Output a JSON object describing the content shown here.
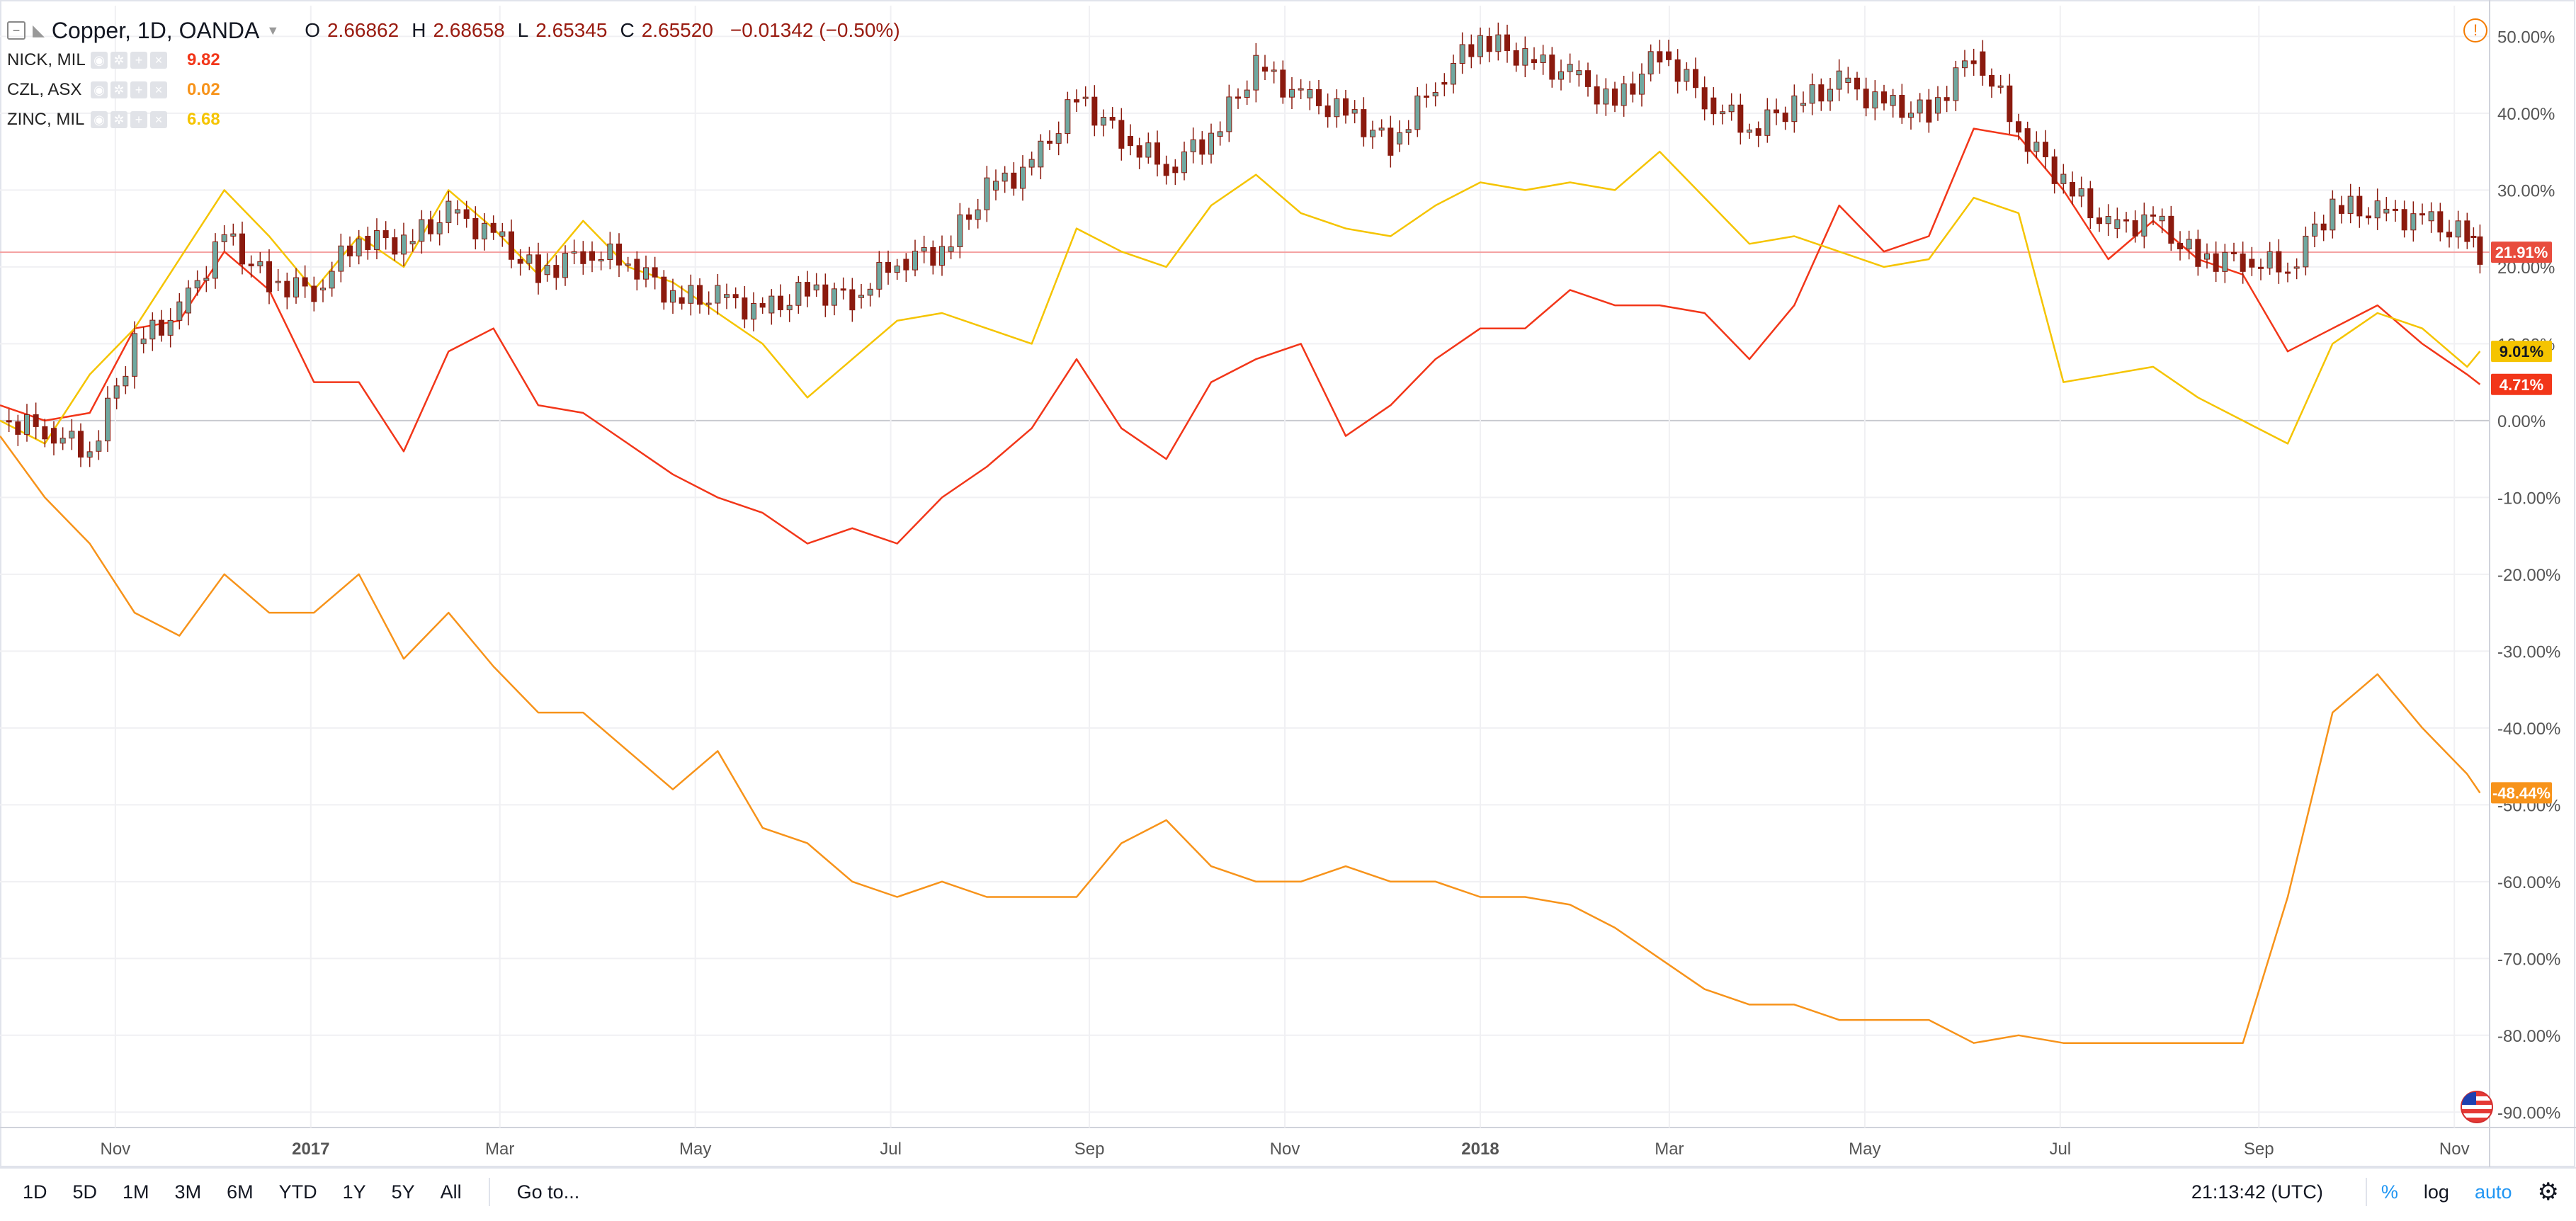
{
  "header": {
    "title": "Copper, 1D, OANDA",
    "ohlc": {
      "o_label": "O",
      "o": "2.66862",
      "h_label": "H",
      "h": "2.68658",
      "l_label": "L",
      "l": "2.65345",
      "c_label": "C",
      "c": "2.65520",
      "change": "−0.01342 (−0.50%)"
    }
  },
  "compare": [
    {
      "name": "NICK, MIL",
      "value": "9.82",
      "color": "#f23619"
    },
    {
      "name": "CZL, ASX",
      "value": "0.02",
      "color": "#f7931a"
    },
    {
      "name": "ZINC, MIL",
      "value": "6.68",
      "color": "#f5c400"
    }
  ],
  "toolbar": {
    "ranges": [
      "1D",
      "5D",
      "1M",
      "3M",
      "6M",
      "YTD",
      "1Y",
      "5Y",
      "All"
    ],
    "goto": "Go to...",
    "time": "21:13:42 (UTC)",
    "percent": "%",
    "log": "log",
    "auto": "auto"
  },
  "colors": {
    "candle_up": "#6fa8a0",
    "candle_down": "#8b1a0e",
    "nick": "#f23619",
    "czl": "#f7931a",
    "zinc": "#f5c400",
    "grid": "#f0f0f3"
  },
  "chart_data": {
    "type": "line",
    "y_unit": "%",
    "ylim": [
      -92,
      54
    ],
    "y_ticks": [
      "50.00%",
      "40.00%",
      "30.00%",
      "20.00%",
      "10.00%",
      "0.00%",
      "-10.00%",
      "-20.00%",
      "-30.00%",
      "-40.00%",
      "-50.00%",
      "-60.00%",
      "-70.00%",
      "-80.00%",
      "-90.00%"
    ],
    "x_start": "2016-09-26",
    "x_end": "2018-11-12",
    "x_ticks": [
      {
        "label": "Nov",
        "date": "2016-11-01",
        "bold": false
      },
      {
        "label": "2017",
        "date": "2017-01-01",
        "bold": true
      },
      {
        "label": "Mar",
        "date": "2017-03-01",
        "bold": false
      },
      {
        "label": "May",
        "date": "2017-05-01",
        "bold": false
      },
      {
        "label": "Jul",
        "date": "2017-07-01",
        "bold": false
      },
      {
        "label": "Sep",
        "date": "2017-09-01",
        "bold": false
      },
      {
        "label": "Nov",
        "date": "2017-11-01",
        "bold": false
      },
      {
        "label": "2018",
        "date": "2018-01-01",
        "bold": true
      },
      {
        "label": "Mar",
        "date": "2018-03-01",
        "bold": false
      },
      {
        "label": "May",
        "date": "2018-05-01",
        "bold": false
      },
      {
        "label": "Jul",
        "date": "2018-07-01",
        "bold": false
      },
      {
        "label": "Sep",
        "date": "2018-09-01",
        "bold": false
      },
      {
        "label": "Nov",
        "date": "2018-11-01",
        "bold": false
      }
    ],
    "grid": true,
    "last_value_labels": [
      {
        "text": "21.91%",
        "value": 21.91,
        "color": "#e84c3d"
      },
      {
        "text": "9.01%",
        "value": 9.01,
        "color": "#f5c400"
      },
      {
        "text": "4.71%",
        "value": 4.71,
        "color": "#f23619"
      },
      {
        "text": "-48.44%",
        "value": -48.44,
        "color": "#f7931a"
      }
    ],
    "series": [
      {
        "name": "Copper",
        "style": "candles",
        "points": [
          [
            "2016-09-26",
            0
          ],
          [
            "2016-10-10",
            -1
          ],
          [
            "2016-10-24",
            -4
          ],
          [
            "2016-11-07",
            10
          ],
          [
            "2016-11-21",
            14
          ],
          [
            "2016-12-05",
            24
          ],
          [
            "2016-12-19",
            18
          ],
          [
            "2017-01-02",
            17
          ],
          [
            "2017-01-16",
            24
          ],
          [
            "2017-01-30",
            23
          ],
          [
            "2017-02-13",
            27
          ],
          [
            "2017-02-27",
            24
          ],
          [
            "2017-03-13",
            19
          ],
          [
            "2017-03-27",
            22
          ],
          [
            "2017-04-10",
            21
          ],
          [
            "2017-04-24",
            16
          ],
          [
            "2017-05-08",
            16
          ],
          [
            "2017-05-22",
            14
          ],
          [
            "2017-06-05",
            17
          ],
          [
            "2017-06-19",
            16
          ],
          [
            "2017-07-03",
            21
          ],
          [
            "2017-07-17",
            22
          ],
          [
            "2017-07-31",
            30
          ],
          [
            "2017-08-14",
            33
          ],
          [
            "2017-08-28",
            42
          ],
          [
            "2017-09-11",
            37
          ],
          [
            "2017-09-25",
            33
          ],
          [
            "2017-10-09",
            37
          ],
          [
            "2017-10-23",
            46
          ],
          [
            "2017-11-06",
            42
          ],
          [
            "2017-11-20",
            40
          ],
          [
            "2017-12-04",
            36
          ],
          [
            "2017-12-18",
            44
          ],
          [
            "2018-01-01",
            50
          ],
          [
            "2018-01-15",
            47
          ],
          [
            "2018-01-29",
            45
          ],
          [
            "2018-02-12",
            41
          ],
          [
            "2018-02-26",
            48
          ],
          [
            "2018-03-12",
            42
          ],
          [
            "2018-03-26",
            38
          ],
          [
            "2018-04-09",
            41
          ],
          [
            "2018-04-23",
            44
          ],
          [
            "2018-05-07",
            41
          ],
          [
            "2018-05-21",
            40
          ],
          [
            "2018-06-04",
            48
          ],
          [
            "2018-06-18",
            38
          ],
          [
            "2018-07-02",
            31
          ],
          [
            "2018-07-16",
            25
          ],
          [
            "2018-07-30",
            26
          ],
          [
            "2018-08-13",
            21
          ],
          [
            "2018-08-27",
            21
          ],
          [
            "2018-09-10",
            20
          ],
          [
            "2018-09-24",
            28
          ],
          [
            "2018-10-08",
            27
          ],
          [
            "2018-10-22",
            26
          ],
          [
            "2018-11-05",
            24
          ],
          [
            "2018-11-09",
            21.91
          ]
        ]
      },
      {
        "name": "NICK, MIL",
        "style": "line",
        "points": [
          [
            "2016-09-26",
            2
          ],
          [
            "2016-10-10",
            0
          ],
          [
            "2016-10-24",
            1
          ],
          [
            "2016-11-07",
            12
          ],
          [
            "2016-11-21",
            13
          ],
          [
            "2016-12-05",
            22
          ],
          [
            "2016-12-19",
            17
          ],
          [
            "2017-01-02",
            5
          ],
          [
            "2017-01-16",
            5
          ],
          [
            "2017-01-30",
            -4
          ],
          [
            "2017-02-13",
            9
          ],
          [
            "2017-02-27",
            12
          ],
          [
            "2017-03-13",
            2
          ],
          [
            "2017-03-27",
            1
          ],
          [
            "2017-04-10",
            -3
          ],
          [
            "2017-04-24",
            -7
          ],
          [
            "2017-05-08",
            -10
          ],
          [
            "2017-05-22",
            -12
          ],
          [
            "2017-06-05",
            -16
          ],
          [
            "2017-06-19",
            -14
          ],
          [
            "2017-07-03",
            -16
          ],
          [
            "2017-07-17",
            -10
          ],
          [
            "2017-07-31",
            -6
          ],
          [
            "2017-08-14",
            -1
          ],
          [
            "2017-08-28",
            8
          ],
          [
            "2017-09-11",
            -1
          ],
          [
            "2017-09-25",
            -5
          ],
          [
            "2017-10-09",
            5
          ],
          [
            "2017-10-23",
            8
          ],
          [
            "2017-11-06",
            10
          ],
          [
            "2017-11-20",
            -2
          ],
          [
            "2017-12-04",
            2
          ],
          [
            "2017-12-18",
            8
          ],
          [
            "2018-01-01",
            12
          ],
          [
            "2018-01-15",
            12
          ],
          [
            "2018-01-29",
            17
          ],
          [
            "2018-02-12",
            15
          ],
          [
            "2018-02-26",
            15
          ],
          [
            "2018-03-12",
            14
          ],
          [
            "2018-03-26",
            8
          ],
          [
            "2018-04-09",
            15
          ],
          [
            "2018-04-23",
            28
          ],
          [
            "2018-05-07",
            22
          ],
          [
            "2018-05-21",
            24
          ],
          [
            "2018-06-04",
            38
          ],
          [
            "2018-06-18",
            37
          ],
          [
            "2018-07-02",
            30
          ],
          [
            "2018-07-16",
            21
          ],
          [
            "2018-07-30",
            26
          ],
          [
            "2018-08-13",
            21
          ],
          [
            "2018-08-27",
            19
          ],
          [
            "2018-09-10",
            9
          ],
          [
            "2018-09-24",
            12
          ],
          [
            "2018-10-08",
            15
          ],
          [
            "2018-10-22",
            10
          ],
          [
            "2018-11-05",
            6
          ],
          [
            "2018-11-09",
            4.71
          ]
        ]
      },
      {
        "name": "ZINC, MIL",
        "style": "line",
        "points": [
          [
            "2016-09-26",
            0
          ],
          [
            "2016-10-10",
            -3
          ],
          [
            "2016-10-24",
            6
          ],
          [
            "2016-11-07",
            12
          ],
          [
            "2016-11-21",
            21
          ],
          [
            "2016-12-05",
            30
          ],
          [
            "2016-12-19",
            24
          ],
          [
            "2017-01-02",
            17
          ],
          [
            "2017-01-16",
            24
          ],
          [
            "2017-01-30",
            20
          ],
          [
            "2017-02-13",
            30
          ],
          [
            "2017-02-27",
            25
          ],
          [
            "2017-03-13",
            19
          ],
          [
            "2017-03-27",
            26
          ],
          [
            "2017-04-10",
            20
          ],
          [
            "2017-04-24",
            18
          ],
          [
            "2017-05-08",
            14
          ],
          [
            "2017-05-22",
            10
          ],
          [
            "2017-06-05",
            3
          ],
          [
            "2017-06-19",
            8
          ],
          [
            "2017-07-03",
            13
          ],
          [
            "2017-07-17",
            14
          ],
          [
            "2017-07-31",
            12
          ],
          [
            "2017-08-14",
            10
          ],
          [
            "2017-08-28",
            25
          ],
          [
            "2017-09-11",
            22
          ],
          [
            "2017-09-25",
            20
          ],
          [
            "2017-10-09",
            28
          ],
          [
            "2017-10-23",
            32
          ],
          [
            "2017-11-06",
            27
          ],
          [
            "2017-11-20",
            25
          ],
          [
            "2017-12-04",
            24
          ],
          [
            "2017-12-18",
            28
          ],
          [
            "2018-01-01",
            31
          ],
          [
            "2018-01-15",
            30
          ],
          [
            "2018-01-29",
            31
          ],
          [
            "2018-02-12",
            30
          ],
          [
            "2018-02-26",
            35
          ],
          [
            "2018-03-12",
            29
          ],
          [
            "2018-03-26",
            23
          ],
          [
            "2018-04-09",
            24
          ],
          [
            "2018-04-23",
            22
          ],
          [
            "2018-05-07",
            20
          ],
          [
            "2018-05-21",
            21
          ],
          [
            "2018-06-04",
            29
          ],
          [
            "2018-06-18",
            27
          ],
          [
            "2018-07-02",
            5
          ],
          [
            "2018-07-16",
            6
          ],
          [
            "2018-07-30",
            7
          ],
          [
            "2018-08-13",
            3
          ],
          [
            "2018-08-27",
            0
          ],
          [
            "2018-09-10",
            -3
          ],
          [
            "2018-09-24",
            10
          ],
          [
            "2018-10-08",
            14
          ],
          [
            "2018-10-22",
            12
          ],
          [
            "2018-11-05",
            7
          ],
          [
            "2018-11-09",
            9.01
          ]
        ]
      },
      {
        "name": "CZL, ASX",
        "style": "line",
        "points": [
          [
            "2016-09-26",
            -2
          ],
          [
            "2016-10-10",
            -10
          ],
          [
            "2016-10-24",
            -16
          ],
          [
            "2016-11-07",
            -25
          ],
          [
            "2016-11-21",
            -28
          ],
          [
            "2016-12-05",
            -20
          ],
          [
            "2016-12-19",
            -25
          ],
          [
            "2017-01-02",
            -25
          ],
          [
            "2017-01-16",
            -20
          ],
          [
            "2017-01-30",
            -31
          ],
          [
            "2017-02-13",
            -25
          ],
          [
            "2017-02-27",
            -32
          ],
          [
            "2017-03-13",
            -38
          ],
          [
            "2017-03-27",
            -38
          ],
          [
            "2017-04-10",
            -43
          ],
          [
            "2017-04-24",
            -48
          ],
          [
            "2017-05-08",
            -43
          ],
          [
            "2017-05-22",
            -53
          ],
          [
            "2017-06-05",
            -55
          ],
          [
            "2017-06-19",
            -60
          ],
          [
            "2017-07-03",
            -62
          ],
          [
            "2017-07-17",
            -60
          ],
          [
            "2017-07-31",
            -62
          ],
          [
            "2017-08-14",
            -62
          ],
          [
            "2017-08-28",
            -62
          ],
          [
            "2017-09-11",
            -55
          ],
          [
            "2017-09-25",
            -52
          ],
          [
            "2017-10-09",
            -58
          ],
          [
            "2017-10-23",
            -60
          ],
          [
            "2017-11-06",
            -60
          ],
          [
            "2017-11-20",
            -58
          ],
          [
            "2017-12-04",
            -60
          ],
          [
            "2017-12-18",
            -60
          ],
          [
            "2018-01-01",
            -62
          ],
          [
            "2018-01-15",
            -62
          ],
          [
            "2018-01-29",
            -63
          ],
          [
            "2018-02-12",
            -66
          ],
          [
            "2018-02-26",
            -70
          ],
          [
            "2018-03-12",
            -74
          ],
          [
            "2018-03-26",
            -76
          ],
          [
            "2018-04-09",
            -76
          ],
          [
            "2018-04-23",
            -78
          ],
          [
            "2018-05-07",
            -78
          ],
          [
            "2018-05-21",
            -78
          ],
          [
            "2018-06-04",
            -81
          ],
          [
            "2018-06-18",
            -80
          ],
          [
            "2018-07-02",
            -81
          ],
          [
            "2018-07-16",
            -81
          ],
          [
            "2018-07-30",
            -81
          ],
          [
            "2018-08-13",
            -81
          ],
          [
            "2018-08-27",
            -81
          ],
          [
            "2018-09-10",
            -62
          ],
          [
            "2018-09-24",
            -38
          ],
          [
            "2018-10-08",
            -33
          ],
          [
            "2018-10-22",
            -40
          ],
          [
            "2018-11-05",
            -46
          ],
          [
            "2018-11-09",
            -48.44
          ]
        ]
      }
    ]
  }
}
